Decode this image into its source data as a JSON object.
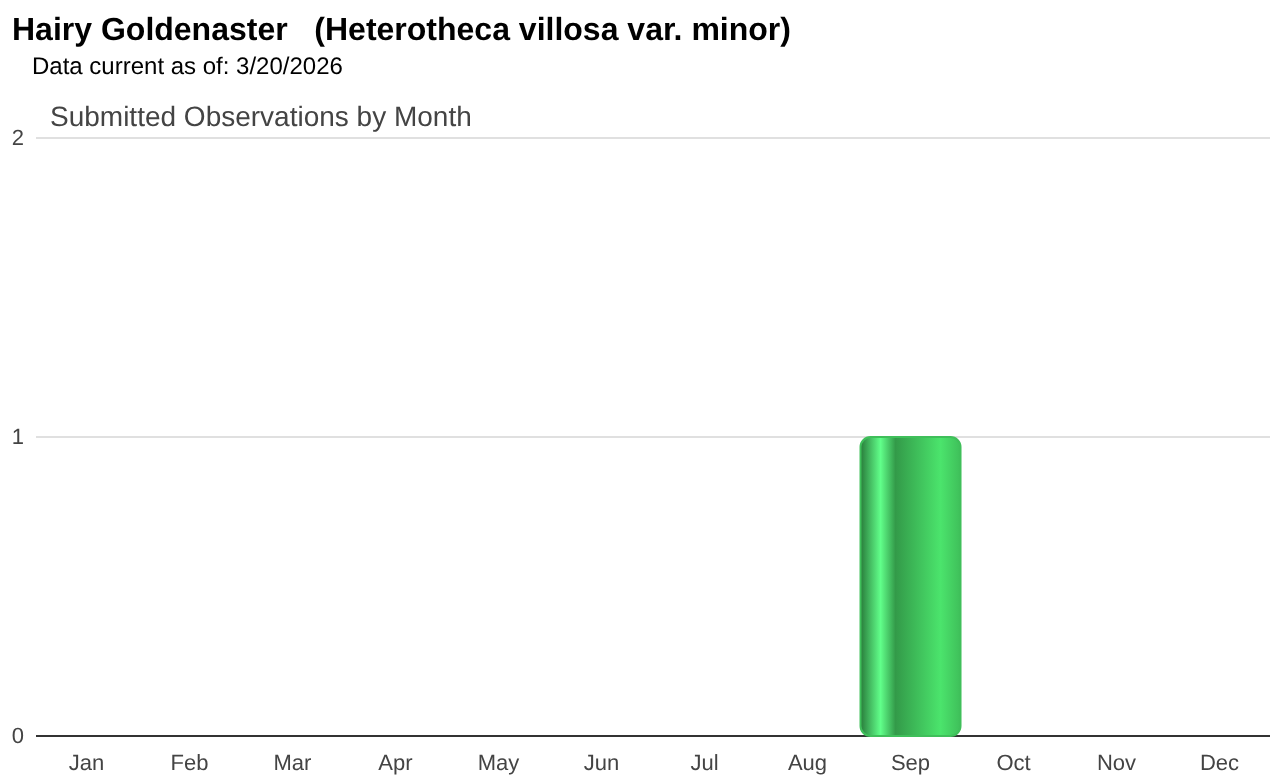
{
  "chart_data": {
    "type": "bar",
    "title": "Hairy Goldenaster   (Heterotheca villosa var. minor)",
    "subtitle": "Data current as of: 3/20/2026",
    "annotations": [
      "Submitted Observations by Month"
    ],
    "categories": [
      "Jan",
      "Feb",
      "Mar",
      "Apr",
      "May",
      "Jun",
      "Jul",
      "Aug",
      "Sep",
      "Oct",
      "Nov",
      "Dec"
    ],
    "values": [
      0,
      0,
      0,
      0,
      0,
      0,
      0,
      0,
      1,
      0,
      0,
      0
    ],
    "color": "#3fbf5a",
    "ylim": [
      0,
      2
    ],
    "yticks": [
      0,
      1,
      2
    ],
    "grid": "y"
  }
}
